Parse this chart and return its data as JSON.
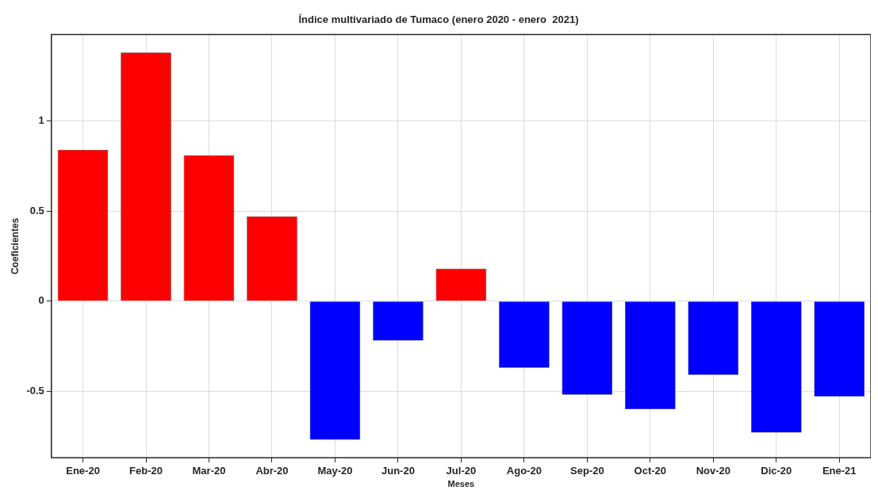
{
  "chart_data": {
    "type": "bar",
    "title": "Índice multivariado de Tumaco (enero 2020 - enero  2021)",
    "xlabel": "Meses",
    "ylabel": "Coeficientes",
    "categories": [
      "Ene-20",
      "Feb-20",
      "Mar-20",
      "Abr-20",
      "May-20",
      "Jun-20",
      "Jul-20",
      "Ago-20",
      "Sep-20",
      "Oct-20",
      "Nov-20",
      "Dic-20",
      "Ene-21"
    ],
    "values": [
      0.84,
      1.38,
      0.81,
      0.47,
      -0.77,
      -0.22,
      0.18,
      -0.37,
      -0.52,
      -0.6,
      -0.41,
      -0.73,
      -0.53
    ],
    "colors": [
      "#ff0000",
      "#ff0000",
      "#ff0000",
      "#ff0000",
      "#0000ff",
      "#0000ff",
      "#ff0000",
      "#0000ff",
      "#0000ff",
      "#0000ff",
      "#0000ff",
      "#0000ff",
      "#0000ff"
    ],
    "ylim": [
      -0.87,
      1.48
    ],
    "yticks": [
      -0.5,
      0,
      0.5,
      1
    ],
    "grid": true,
    "legend": false
  }
}
